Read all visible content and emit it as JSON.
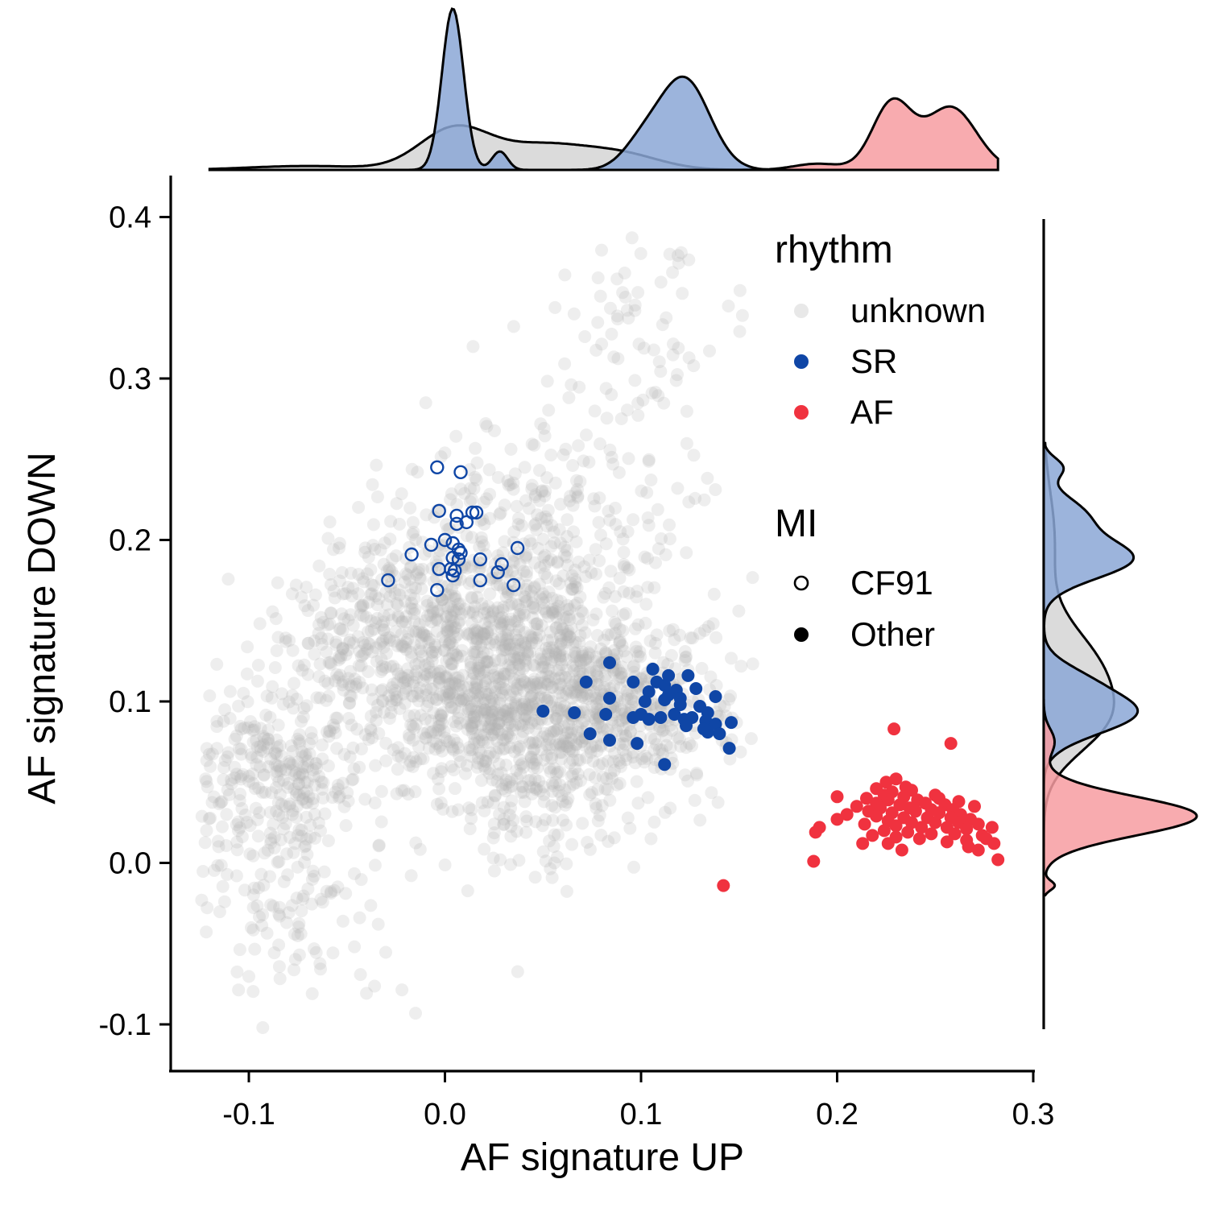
{
  "chart_data": {
    "type": "scatter",
    "title": "",
    "xlabel": "AF signature UP",
    "ylabel": "AF signature DOWN",
    "xlim": [
      -0.142,
      0.3
    ],
    "ylim": [
      -0.128,
      0.425
    ],
    "x_ticks": [
      -0.1,
      0.0,
      0.1,
      0.2,
      0.3
    ],
    "x_tick_labels": [
      "-0.1",
      "0.0",
      "0.1",
      "0.2",
      "0.3"
    ],
    "y_ticks": [
      -0.1,
      0.0,
      0.1,
      0.2,
      0.3,
      0.4
    ],
    "y_tick_labels": [
      "-0.1",
      "0.0",
      "0.1",
      "0.2",
      "0.3",
      "0.4"
    ],
    "grid": false,
    "legend_placement": "top-right",
    "marginals": "density on top (x) and right (y), per rhythm group",
    "legend": {
      "groups": [
        {
          "title": "rhythm",
          "entries": [
            {
              "label": "unknown",
              "color": "#b3b3b3",
              "shape": "filled-circle-faded"
            },
            {
              "label": "SR",
              "color": "#0f46a6",
              "shape": "filled-circle"
            },
            {
              "label": "AF",
              "color": "#f0323f",
              "shape": "filled-circle"
            }
          ]
        },
        {
          "title": "MI",
          "entries": [
            {
              "label": "CF91",
              "color": "#000000",
              "shape": "open-circle"
            },
            {
              "label": "Other",
              "color": "#000000",
              "shape": "filled-circle"
            }
          ]
        }
      ]
    },
    "series": [
      {
        "name": "unknown",
        "color": "#b3b3b3",
        "description": "dense background cloud of several thousand points",
        "cloud_components": [
          {
            "cx": 0.015,
            "cy": 0.12,
            "sx": 0.035,
            "sy": 0.04,
            "weight": 0.38
          },
          {
            "cx": 0.075,
            "cy": 0.095,
            "sx": 0.033,
            "sy": 0.032,
            "weight": 0.25
          },
          {
            "cx": -0.085,
            "cy": 0.05,
            "sx": 0.022,
            "sy": 0.03,
            "weight": 0.12
          },
          {
            "cx": 0.04,
            "cy": 0.2,
            "sx": 0.04,
            "sy": 0.028,
            "weight": 0.08
          },
          {
            "cx": -0.05,
            "cy": 0.15,
            "sx": 0.025,
            "sy": 0.025,
            "weight": 0.05
          },
          {
            "cx": -0.07,
            "cy": -0.04,
            "sx": 0.025,
            "sy": 0.03,
            "weight": 0.04
          },
          {
            "cx": 0.05,
            "cy": 0.025,
            "sx": 0.02,
            "sy": 0.02,
            "weight": 0.03
          },
          {
            "cx": 0.1,
            "cy": 0.34,
            "sx": 0.025,
            "sy": 0.04,
            "weight": 0.03
          },
          {
            "cx": 0.07,
            "cy": 0.26,
            "sx": 0.03,
            "sy": 0.03,
            "weight": 0.02
          }
        ]
      },
      {
        "name": "SR",
        "color": "#0f46a6",
        "marker": "open",
        "mi": "CF91",
        "points": [
          [
            -0.004,
            0.245
          ],
          [
            0.008,
            0.242
          ],
          [
            -0.003,
            0.218
          ],
          [
            0.006,
            0.215
          ],
          [
            0.014,
            0.217
          ],
          [
            0.016,
            0.217
          ],
          [
            0.006,
            0.21
          ],
          [
            0.011,
            0.211
          ],
          [
            -0.007,
            0.197
          ],
          [
            0.0,
            0.2
          ],
          [
            0.004,
            0.198
          ],
          [
            0.007,
            0.194
          ],
          [
            0.008,
            0.192
          ],
          [
            -0.017,
            0.191
          ],
          [
            0.004,
            0.189
          ],
          [
            0.007,
            0.188
          ],
          [
            0.018,
            0.188
          ],
          [
            0.029,
            0.185
          ],
          [
            0.037,
            0.195
          ],
          [
            -0.003,
            0.182
          ],
          [
            0.003,
            0.182
          ],
          [
            0.005,
            0.181
          ],
          [
            0.027,
            0.18
          ],
          [
            0.004,
            0.178
          ],
          [
            -0.029,
            0.175
          ],
          [
            0.018,
            0.175
          ],
          [
            0.035,
            0.172
          ],
          [
            -0.004,
            0.169
          ]
        ]
      },
      {
        "name": "SR",
        "color": "#0f46a6",
        "marker": "filled",
        "mi": "Other",
        "points": [
          [
            0.084,
            0.124
          ],
          [
            0.106,
            0.12
          ],
          [
            0.114,
            0.116
          ],
          [
            0.124,
            0.116
          ],
          [
            0.108,
            0.112
          ],
          [
            0.072,
            0.112
          ],
          [
            0.096,
            0.112
          ],
          [
            0.112,
            0.11
          ],
          [
            0.118,
            0.107
          ],
          [
            0.128,
            0.108
          ],
          [
            0.104,
            0.106
          ],
          [
            0.114,
            0.104
          ],
          [
            0.12,
            0.102
          ],
          [
            0.138,
            0.103
          ],
          [
            0.084,
            0.102
          ],
          [
            0.102,
            0.1
          ],
          [
            0.112,
            0.101
          ],
          [
            0.12,
            0.098
          ],
          [
            0.13,
            0.097
          ],
          [
            0.134,
            0.093
          ],
          [
            0.126,
            0.09
          ],
          [
            0.05,
            0.094
          ],
          [
            0.066,
            0.093
          ],
          [
            0.1,
            0.092
          ],
          [
            0.117,
            0.092
          ],
          [
            0.104,
            0.089
          ],
          [
            0.122,
            0.089
          ],
          [
            0.133,
            0.088
          ],
          [
            0.146,
            0.087
          ],
          [
            0.138,
            0.086
          ],
          [
            0.123,
            0.085
          ],
          [
            0.132,
            0.083
          ],
          [
            0.082,
            0.092
          ],
          [
            0.096,
            0.09
          ],
          [
            0.11,
            0.09
          ],
          [
            0.074,
            0.08
          ],
          [
            0.134,
            0.081
          ],
          [
            0.14,
            0.08
          ],
          [
            0.084,
            0.076
          ],
          [
            0.098,
            0.074
          ],
          [
            0.145,
            0.071
          ],
          [
            0.112,
            0.061
          ]
        ]
      },
      {
        "name": "AF",
        "color": "#f0323f",
        "marker": "filled",
        "mi": "Other",
        "points": [
          [
            0.229,
            0.083
          ],
          [
            0.258,
            0.074
          ],
          [
            0.23,
            0.052
          ],
          [
            0.225,
            0.05
          ],
          [
            0.235,
            0.047
          ],
          [
            0.22,
            0.046
          ],
          [
            0.228,
            0.044
          ],
          [
            0.238,
            0.045
          ],
          [
            0.224,
            0.042
          ],
          [
            0.234,
            0.041
          ],
          [
            0.25,
            0.042
          ],
          [
            0.2,
            0.041
          ],
          [
            0.215,
            0.04
          ],
          [
            0.226,
            0.039
          ],
          [
            0.241,
            0.039
          ],
          [
            0.252,
            0.04
          ],
          [
            0.262,
            0.038
          ],
          [
            0.22,
            0.037
          ],
          [
            0.232,
            0.036
          ],
          [
            0.245,
            0.037
          ],
          [
            0.255,
            0.036
          ],
          [
            0.21,
            0.035
          ],
          [
            0.222,
            0.034
          ],
          [
            0.237,
            0.034
          ],
          [
            0.248,
            0.033
          ],
          [
            0.259,
            0.033
          ],
          [
            0.27,
            0.035
          ],
          [
            0.216,
            0.032
          ],
          [
            0.228,
            0.031
          ],
          [
            0.24,
            0.032
          ],
          [
            0.252,
            0.031
          ],
          [
            0.263,
            0.03
          ],
          [
            0.205,
            0.03
          ],
          [
            0.22,
            0.029
          ],
          [
            0.234,
            0.028
          ],
          [
            0.246,
            0.028
          ],
          [
            0.258,
            0.028
          ],
          [
            0.268,
            0.027
          ],
          [
            0.226,
            0.026
          ],
          [
            0.238,
            0.025
          ],
          [
            0.25,
            0.025
          ],
          [
            0.262,
            0.025
          ],
          [
            0.272,
            0.024
          ],
          [
            0.2,
            0.027
          ],
          [
            0.214,
            0.024
          ],
          [
            0.23,
            0.023
          ],
          [
            0.243,
            0.022
          ],
          [
            0.256,
            0.022
          ],
          [
            0.266,
            0.021
          ],
          [
            0.279,
            0.022
          ],
          [
            0.191,
            0.022
          ],
          [
            0.224,
            0.02
          ],
          [
            0.236,
            0.019
          ],
          [
            0.248,
            0.018
          ],
          [
            0.26,
            0.018
          ],
          [
            0.274,
            0.017
          ],
          [
            0.189,
            0.019
          ],
          [
            0.218,
            0.017
          ],
          [
            0.23,
            0.016
          ],
          [
            0.242,
            0.015
          ],
          [
            0.266,
            0.014
          ],
          [
            0.276,
            0.015
          ],
          [
            0.256,
            0.013
          ],
          [
            0.213,
            0.012
          ],
          [
            0.226,
            0.012
          ],
          [
            0.267,
            0.01
          ],
          [
            0.28,
            0.012
          ],
          [
            0.233,
            0.008
          ],
          [
            0.272,
            0.008
          ],
          [
            0.188,
            0.001
          ],
          [
            0.282,
            0.002
          ],
          [
            0.142,
            -0.014
          ]
        ]
      }
    ],
    "marginal_x_density": {
      "x_range": [
        -0.12,
        0.282
      ],
      "groups": [
        {
          "name": "unknown",
          "color": "#d5d5d5",
          "components": [
            {
              "mu": 0.005,
              "sd": 0.018,
              "w": 0.5
            },
            {
              "mu": 0.05,
              "sd": 0.022,
              "w": 0.35
            },
            {
              "mu": 0.09,
              "sd": 0.02,
              "w": 0.2
            },
            {
              "mu": -0.07,
              "sd": 0.03,
              "w": 0.08
            }
          ]
        },
        {
          "name": "SR",
          "color": "#8ba7d6",
          "components": [
            {
              "mu": 0.004,
              "sd": 0.0055,
              "w": 0.6
            },
            {
              "mu": 0.028,
              "sd": 0.004,
              "w": 0.05
            },
            {
              "mu": 0.122,
              "sd": 0.013,
              "w": 0.8
            },
            {
              "mu": 0.1,
              "sd": 0.01,
              "w": 0.15
            }
          ]
        },
        {
          "name": "AF",
          "color": "#f79ca1",
          "components": [
            {
              "mu": 0.228,
              "sd": 0.01,
              "w": 0.45
            },
            {
              "mu": 0.258,
              "sd": 0.013,
              "w": 0.55
            },
            {
              "mu": 0.19,
              "sd": 0.012,
              "w": 0.05
            }
          ]
        }
      ]
    },
    "marginal_y_density": {
      "y_range": [
        -0.02,
        0.26
      ],
      "groups": [
        {
          "name": "unknown",
          "color": "#d5d5d5",
          "components": [
            {
              "mu": 0.12,
              "sd": 0.025,
              "w": 0.6
            },
            {
              "mu": 0.085,
              "sd": 0.02,
              "w": 0.4
            },
            {
              "mu": 0.2,
              "sd": 0.03,
              "w": 0.15
            }
          ]
        },
        {
          "name": "SR",
          "color": "#8ba7d6",
          "components": [
            {
              "mu": 0.188,
              "sd": 0.012,
              "w": 0.48
            },
            {
              "mu": 0.215,
              "sd": 0.012,
              "w": 0.22
            },
            {
              "mu": 0.245,
              "sd": 0.006,
              "w": 0.05
            },
            {
              "mu": 0.093,
              "sd": 0.013,
              "w": 0.55
            },
            {
              "mu": 0.115,
              "sd": 0.01,
              "w": 0.12
            }
          ]
        },
        {
          "name": "AF",
          "color": "#f79ca1",
          "components": [
            {
              "mu": 0.029,
              "sd": 0.012,
              "w": 0.85
            },
            {
              "mu": 0.075,
              "sd": 0.008,
              "w": 0.04
            },
            {
              "mu": -0.014,
              "sd": 0.003,
              "w": 0.015
            }
          ]
        }
      ]
    }
  }
}
